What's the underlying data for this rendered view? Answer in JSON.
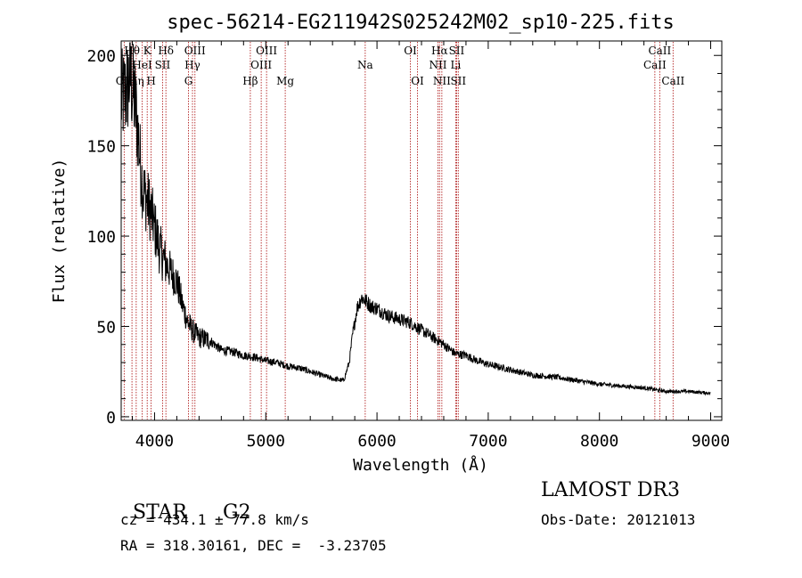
{
  "chart_data": {
    "type": "line",
    "title": "spec-56214-EG211942S025242M02_sp10-225.fits",
    "xlabel": "Wavelength (Å)",
    "ylabel": "Flux (relative)",
    "xlim": [
      3700,
      9100
    ],
    "ylim": [
      -2,
      208
    ],
    "xticks": [
      4000,
      5000,
      6000,
      7000,
      8000,
      9000
    ],
    "yticks": [
      0,
      50,
      100,
      150,
      200
    ],
    "grid": false,
    "series": [
      {
        "name": "flux",
        "x": [
          3700,
          3750,
          3780,
          3800,
          3820,
          3840,
          3860,
          3880,
          3900,
          3930,
          3960,
          4000,
          4050,
          4100,
          4150,
          4200,
          4250,
          4300,
          4350,
          4400,
          4450,
          4500,
          4600,
          4700,
          4800,
          4900,
          5000,
          5100,
          5200,
          5300,
          5400,
          5500,
          5600,
          5700,
          5750,
          5780,
          5820,
          5860,
          5900,
          5950,
          6000,
          6100,
          6200,
          6300,
          6400,
          6500,
          6600,
          6700,
          6800,
          6900,
          7000,
          7200,
          7400,
          7600,
          7800,
          8000,
          8200,
          8400,
          8600,
          8800,
          9000
        ],
        "y": [
          175,
          180,
          190,
          182,
          175,
          165,
          150,
          135,
          125,
          120,
          115,
          105,
          92,
          85,
          80,
          75,
          62,
          52,
          47,
          44,
          43,
          42,
          37,
          36,
          34,
          33,
          31,
          30,
          28,
          27,
          25,
          23,
          21,
          20,
          30,
          45,
          60,
          66,
          64,
          61,
          60,
          56,
          54,
          52,
          48,
          44,
          40,
          35,
          34,
          31,
          29,
          26,
          23,
          22,
          20,
          18,
          17,
          16,
          14,
          14,
          13
        ]
      }
    ],
    "lines": [
      {
        "label": "OII",
        "x": 3727,
        "row": 2
      },
      {
        "label": "Hθ",
        "x": 3797,
        "row": 0
      },
      {
        "label": "Hη",
        "x": 3835,
        "row": 2
      },
      {
        "label": "HeI",
        "x": 3889,
        "row": 1
      },
      {
        "label": "K",
        "x": 3934,
        "row": 0
      },
      {
        "label": "H",
        "x": 3969,
        "row": 2
      },
      {
        "label": "SII",
        "x": 4072,
        "row": 1
      },
      {
        "label": "Hδ",
        "x": 4102,
        "row": 0
      },
      {
        "label": "G",
        "x": 4305,
        "row": 2
      },
      {
        "label": "Hγ",
        "x": 4341,
        "row": 1
      },
      {
        "label": "OIII",
        "x": 4363,
        "row": 0
      },
      {
        "label": "Hβ",
        "x": 4861,
        "row": 2
      },
      {
        "label": "OIII",
        "x": 4959,
        "row": 1
      },
      {
        "label": "OIII",
        "x": 5007,
        "row": 0
      },
      {
        "label": "Mg",
        "x": 5175,
        "row": 2
      },
      {
        "label": "Na",
        "x": 5894,
        "row": 1
      },
      {
        "label": "OI",
        "x": 6300,
        "row": 0
      },
      {
        "label": "OI",
        "x": 6364,
        "row": 2
      },
      {
        "label": "NII",
        "x": 6548,
        "row": 1
      },
      {
        "label": "Hα",
        "x": 6563,
        "row": 0
      },
      {
        "label": "NII",
        "x": 6583,
        "row": 2
      },
      {
        "label": "Li",
        "x": 6708,
        "row": 1
      },
      {
        "label": "SII",
        "x": 6716,
        "row": 0
      },
      {
        "label": "SII",
        "x": 6731,
        "row": 2
      },
      {
        "label": "CaII",
        "x": 8498,
        "row": 1
      },
      {
        "label": "CaII",
        "x": 8542,
        "row": 0
      },
      {
        "label": "CaII",
        "x": 8662,
        "row": 2
      }
    ]
  },
  "footer": {
    "object_class": "STAR",
    "subclass": "G2",
    "survey": "LAMOST DR3",
    "cz": "cz = 434.1 ± 77.8 km/s",
    "obs_date": "Obs-Date: 20121013",
    "coords": "RA = 318.30161, DEC =  -3.23705"
  }
}
